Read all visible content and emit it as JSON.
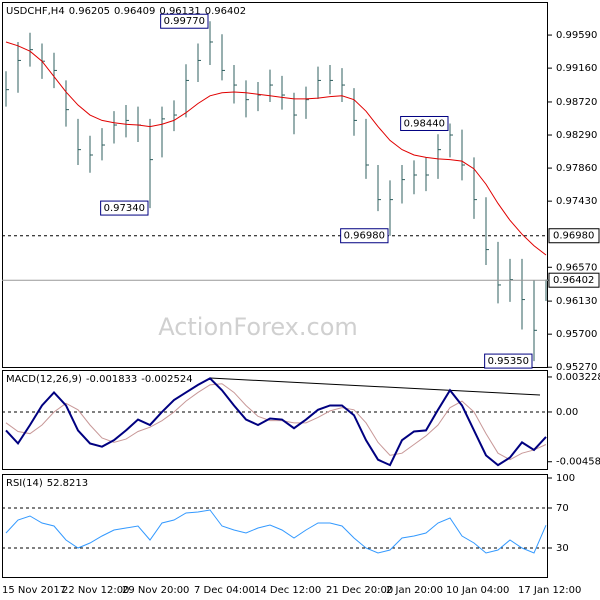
{
  "chart_data": [
    {
      "type": "ohlc",
      "title": "USDCHF,H4",
      "header_values": [
        0.96205,
        0.96409,
        0.96131,
        0.96402
      ],
      "watermark": "ActionForex.com",
      "categories": [
        "15 Nov 2017",
        null,
        null,
        null,
        null,
        "22 Nov 12:00",
        null,
        null,
        null,
        null,
        "29 Nov 20:00",
        null,
        null,
        null,
        null,
        null,
        "7 Dec 04:00",
        null,
        null,
        null,
        null,
        "14 Dec 12:00",
        null,
        null,
        null,
        null,
        null,
        "21 Dec 20:00",
        null,
        null,
        null,
        null,
        "2 Jan 20:00",
        null,
        null,
        null,
        null,
        "10 Jan 04:00",
        null,
        null,
        null,
        null,
        null,
        "17 Jan 12:00",
        null,
        null
      ],
      "color": "#2f5f5f",
      "high": [
        0.9912,
        0.995,
        0.9962,
        0.9948,
        0.9936,
        0.99,
        0.985,
        0.9828,
        0.9838,
        0.986,
        0.9868,
        0.9866,
        0.985,
        0.9866,
        0.9874,
        0.9921,
        0.9948,
        0.9977,
        0.996,
        0.992,
        0.99,
        0.9898,
        0.9914,
        0.9906,
        0.9884,
        0.9892,
        0.9918,
        0.992,
        0.9916,
        0.989,
        0.985,
        0.979,
        0.977,
        0.979,
        0.9796,
        0.98,
        0.983,
        0.9844,
        0.9836,
        0.98,
        0.9748,
        0.969,
        0.9668,
        0.9668,
        0.964,
        0.96409
      ],
      "low": [
        0.9866,
        0.9884,
        0.9918,
        0.9902,
        0.989,
        0.984,
        0.979,
        0.978,
        0.9796,
        0.9818,
        0.9826,
        0.982,
        0.9734,
        0.98,
        0.9834,
        0.9852,
        0.9898,
        0.992,
        0.99,
        0.987,
        0.9852,
        0.986,
        0.9872,
        0.9862,
        0.983,
        0.985,
        0.9876,
        0.9882,
        0.9872,
        0.9828,
        0.9772,
        0.973,
        0.9698,
        0.974,
        0.9752,
        0.9756,
        0.9772,
        0.98,
        0.977,
        0.972,
        0.966,
        0.961,
        0.9612,
        0.9576,
        0.9535,
        0.96131
      ],
      "close": [
        0.9888,
        0.9926,
        0.994,
        0.9925,
        0.9913,
        0.9862,
        0.981,
        0.9803,
        0.9816,
        0.9842,
        0.9848,
        0.9842,
        0.9797,
        0.985,
        0.9855,
        0.99,
        0.9926,
        0.995,
        0.9913,
        0.9894,
        0.9875,
        0.9881,
        0.9894,
        0.9881,
        0.9855,
        0.9875,
        0.99,
        0.99,
        0.9894,
        0.9848,
        0.979,
        0.9745,
        0.9745,
        0.9771,
        0.9777,
        0.9777,
        0.981,
        0.9829,
        0.979,
        0.9745,
        0.968,
        0.9634,
        0.9641,
        0.9615,
        0.9575,
        0.96402
      ],
      "ma": {
        "color": "#e00000",
        "values": [
          0.995,
          0.9945,
          0.9938,
          0.9925,
          0.9905,
          0.9885,
          0.9868,
          0.9855,
          0.9848,
          0.9845,
          0.9843,
          0.9842,
          0.984,
          0.9843,
          0.9848,
          0.9858,
          0.987,
          0.988,
          0.9884,
          0.9885,
          0.9884,
          0.9882,
          0.988,
          0.9878,
          0.9876,
          0.9876,
          0.9877,
          0.9879,
          0.988,
          0.9875,
          0.986,
          0.984,
          0.9822,
          0.981,
          0.9803,
          0.98,
          0.9798,
          0.9797,
          0.9795,
          0.9785,
          0.9765,
          0.974,
          0.9718,
          0.97,
          0.9685,
          0.9673
        ]
      },
      "ylim": [
        0.9526,
        1.0002
      ],
      "yticks": [
        {
          "value": 0.9959,
          "label": "0.99590"
        },
        {
          "value": 0.9916,
          "label": "0.99160"
        },
        {
          "value": 0.9872,
          "label": "0.98720"
        },
        {
          "value": 0.9829,
          "label": "0.98290"
        },
        {
          "value": 0.9786,
          "label": "0.97860"
        },
        {
          "value": 0.9743,
          "label": "0.97430"
        },
        {
          "value": 0.9657,
          "label": "0.96570"
        },
        {
          "value": 0.9613,
          "label": "0.96130"
        },
        {
          "value": 0.957,
          "label": "0.95700"
        },
        {
          "value": 0.9527,
          "label": "0.95270"
        }
      ],
      "annotations": [
        {
          "value": 0.9977,
          "label": "0.99770"
        },
        {
          "value": 0.9734,
          "label": "0.97340"
        },
        {
          "value": 0.9698,
          "label": "0.96980"
        },
        {
          "value": 0.9844,
          "label": "0.98440"
        },
        {
          "value": 0.9535,
          "label": "0.95350"
        }
      ],
      "hlines": [
        {
          "value": 0.9698,
          "label": "0.96980"
        }
      ],
      "last": {
        "value": 0.96402,
        "label": "0.96402"
      }
    },
    {
      "type": "line",
      "title": "MACD(12,26,9)",
      "header_values": [
        -0.001833,
        -0.002524
      ],
      "series": [
        {
          "color": "#000080",
          "values": [
            -0.0017,
            -0.0029,
            -0.0012,
            0.0006,
            0.0018,
            0.0006,
            -0.0017,
            -0.0029,
            -0.0032,
            -0.0026,
            -0.0017,
            -0.0007,
            -0.0012,
            0,
            0.0011,
            0.0018,
            0.0025,
            0.0031,
            0.002,
            0.0006,
            -0.0007,
            -0.0012,
            -0.0006,
            -0.0007,
            -0.0015,
            -0.0007,
            0.0002,
            0.0006,
            0.0006,
            -0.0003,
            -0.0026,
            -0.0044,
            -0.0049,
            -0.0026,
            -0.0018,
            -0.0017,
            0.0002,
            0.002,
            0.0006,
            -0.0017,
            -0.004,
            -0.0049,
            -0.0042,
            -0.0028,
            -0.0035,
            -0.0023
          ]
        },
        {
          "color": "#c89898",
          "values": [
            -0.001,
            -0.0018,
            -0.002,
            -0.0012,
            0,
            0.0008,
            0.0002,
            -0.0012,
            -0.0024,
            -0.0028,
            -0.0025,
            -0.0018,
            -0.0014,
            -0.0008,
            0,
            0.001,
            0.0018,
            0.0025,
            0.0026,
            0.0018,
            0.0006,
            -0.0004,
            -0.0008,
            -0.0008,
            -0.001,
            -0.001,
            -0.0005,
            0.0001,
            0.0004,
            0.0002,
            -0.001,
            -0.0028,
            -0.004,
            -0.0038,
            -0.003,
            -0.0022,
            -0.0012,
            0.0004,
            0.001,
            0,
            -0.002,
            -0.0038,
            -0.0044,
            -0.0038,
            -0.0035,
            -0.003
          ]
        }
      ],
      "ylim": [
        -0.00535,
        0.00387
      ],
      "yticks": [
        0.003228,
        {
          "value": 0,
          "label": "0.00"
        },
        -0.004588
      ],
      "levels": [
        0
      ]
    },
    {
      "type": "line",
      "title": "RSI(14)",
      "header_values": [
        52.8213
      ],
      "series": [
        {
          "color": "#3399ff",
          "values": [
            45,
            58,
            62,
            55,
            52,
            38,
            30,
            35,
            42,
            48,
            50,
            52,
            38,
            55,
            58,
            65,
            66,
            68,
            52,
            48,
            45,
            50,
            53,
            48,
            40,
            48,
            55,
            55,
            52,
            40,
            30,
            25,
            28,
            40,
            42,
            45,
            55,
            60,
            42,
            35,
            25,
            28,
            38,
            30,
            25,
            52.8213
          ]
        }
      ],
      "ylim": [
        0,
        104
      ],
      "yticks": [
        100,
        70,
        30
      ],
      "levels": [
        70,
        30
      ]
    }
  ]
}
